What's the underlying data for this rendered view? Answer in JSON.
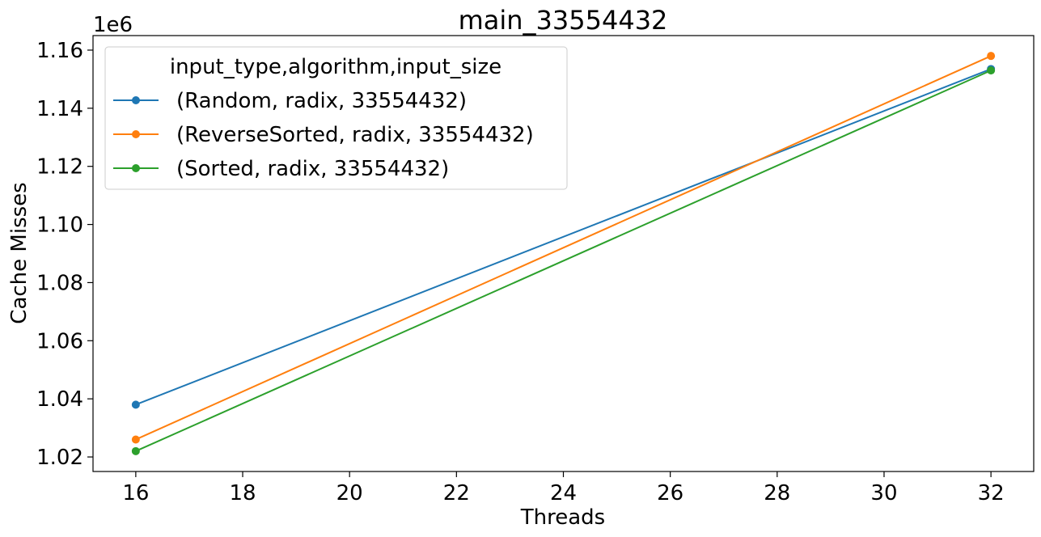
{
  "chart_data": {
    "type": "line",
    "title": "main_33554432",
    "xlabel": "Threads",
    "ylabel": "Cache Misses",
    "y_offset_label": "1e6",
    "y_scale": 1000000,
    "xlim": [
      15.2,
      32.8
    ],
    "ylim": [
      1015000,
      1165000
    ],
    "x_ticks": [
      16,
      18,
      20,
      22,
      24,
      26,
      28,
      30,
      32
    ],
    "y_ticks": [
      1.02,
      1.04,
      1.06,
      1.08,
      1.1,
      1.12,
      1.14,
      1.16
    ],
    "y_tick_labels": [
      "1.02",
      "1.04",
      "1.06",
      "1.08",
      "1.10",
      "1.12",
      "1.14",
      "1.16"
    ],
    "grid": false,
    "legend": {
      "title": "input_type,algorithm,input_size",
      "placement": "top-left"
    },
    "series": [
      {
        "name": "(Random, radix, 33554432)",
        "color": "#1f77b4",
        "points": [
          [
            16,
            1038000
          ],
          [
            32,
            1153500
          ]
        ]
      },
      {
        "name": "(ReverseSorted, radix, 33554432)",
        "color": "#ff7f0e",
        "points": [
          [
            16,
            1026000
          ],
          [
            32,
            1158000
          ]
        ]
      },
      {
        "name": "(Sorted, radix, 33554432)",
        "color": "#2ca02c",
        "points": [
          [
            16,
            1022000
          ],
          [
            32,
            1153000
          ]
        ]
      }
    ]
  }
}
